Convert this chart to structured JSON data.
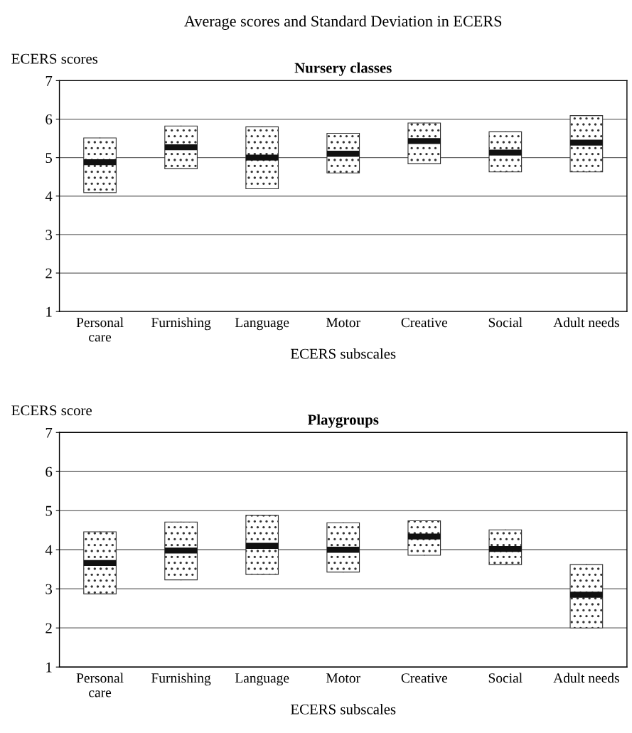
{
  "chart_data": [
    {
      "type": "box",
      "title": "Nursery classes",
      "annotations": [
        "Average scores and Standard Deviation in ECERS"
      ],
      "ylabel": "ECERS scores",
      "xlabel": "ECERS subscales",
      "categories": [
        "Personal\ncare",
        "Furnishing",
        "Language",
        "Motor",
        "Creative",
        "Social",
        "Adult needs"
      ],
      "boxes": [
        {
          "low": 4.09,
          "q1": 4.09,
          "median": 4.88,
          "q3": 5.51,
          "high": 5.51
        },
        {
          "low": 4.71,
          "q1": 4.71,
          "median": 5.27,
          "q3": 5.82,
          "high": 5.82
        },
        {
          "low": 4.19,
          "q1": 4.19,
          "median": 5.0,
          "q3": 5.8,
          "high": 5.8
        },
        {
          "low": 4.6,
          "q1": 4.6,
          "median": 5.1,
          "q3": 5.63,
          "high": 5.63
        },
        {
          "low": 4.84,
          "q1": 4.84,
          "median": 5.43,
          "q3": 5.9,
          "high": 5.9
        },
        {
          "low": 4.63,
          "q1": 4.63,
          "median": 5.13,
          "q3": 5.67,
          "high": 5.67
        },
        {
          "low": 4.63,
          "q1": 4.63,
          "median": 5.39,
          "q3": 6.09,
          "high": 6.09
        }
      ],
      "ylim": [
        1,
        7
      ],
      "yticks": [
        1,
        2,
        3,
        4,
        5,
        6,
        7
      ],
      "grid": "y"
    },
    {
      "type": "box",
      "title": "Playgroups",
      "ylabel": "ECERS score",
      "xlabel": "ECERS subscales",
      "categories": [
        "Personal\ncare",
        "Furnishing",
        "Language",
        "Motor",
        "Creative",
        "Social",
        "Adult needs"
      ],
      "boxes": [
        {
          "low": 2.87,
          "q1": 2.87,
          "median": 3.66,
          "q3": 4.46,
          "high": 4.46
        },
        {
          "low": 3.23,
          "q1": 3.23,
          "median": 3.98,
          "q3": 4.71,
          "high": 4.71
        },
        {
          "low": 3.37,
          "q1": 3.37,
          "median": 4.1,
          "q3": 4.88,
          "high": 4.88
        },
        {
          "low": 3.43,
          "q1": 3.43,
          "median": 4.0,
          "q3": 4.69,
          "high": 4.69
        },
        {
          "low": 3.86,
          "q1": 3.86,
          "median": 4.34,
          "q3": 4.74,
          "high": 4.74
        },
        {
          "low": 3.62,
          "q1": 3.62,
          "median": 4.02,
          "q3": 4.51,
          "high": 4.51
        },
        {
          "low": 2.0,
          "q1": 2.0,
          "median": 2.85,
          "q3": 3.62,
          "high": 3.62
        }
      ],
      "ylim": [
        1,
        7
      ],
      "yticks": [
        1,
        2,
        3,
        4,
        5,
        6,
        7
      ],
      "grid": "y"
    }
  ]
}
